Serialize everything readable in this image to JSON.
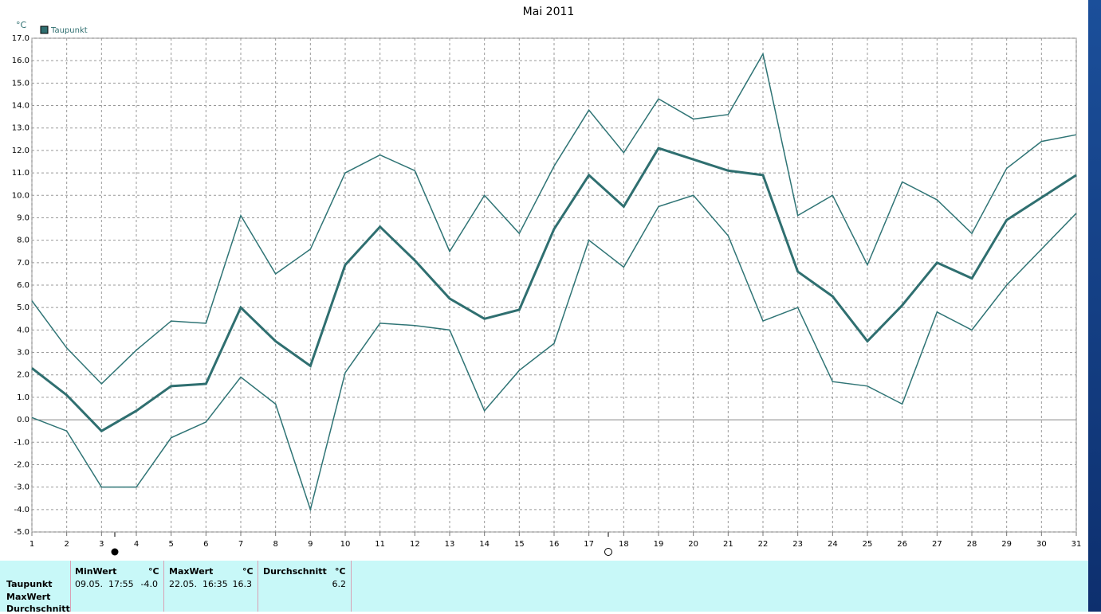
{
  "chart_data": {
    "type": "line",
    "title": "Mai 2011",
    "y_label": "°C",
    "x": [
      1,
      2,
      3,
      4,
      5,
      6,
      7,
      8,
      9,
      10,
      11,
      12,
      13,
      14,
      15,
      16,
      17,
      18,
      19,
      20,
      21,
      22,
      23,
      24,
      25,
      26,
      27,
      28,
      29,
      30,
      31
    ],
    "series": [
      {
        "name": "Taupunkt",
        "color": "#2f6f70",
        "values": [
          2.3,
          1.1,
          -0.5,
          0.4,
          1.5,
          1.6,
          5.0,
          3.5,
          2.4,
          6.9,
          8.6,
          7.1,
          5.4,
          4.5,
          4.9,
          8.5,
          10.9,
          9.5,
          12.1,
          11.6,
          11.1,
          10.9,
          6.6,
          5.5,
          3.5,
          5.1,
          7.0,
          6.3,
          8.9,
          9.9,
          10.9
        ]
      },
      {
        "color": "#2f7475",
        "values": [
          5.3,
          3.2,
          1.6,
          3.1,
          4.4,
          4.3,
          9.1,
          6.5,
          7.6,
          11.0,
          11.8,
          11.1,
          7.5,
          10.0,
          8.3,
          11.3,
          13.8,
          11.9,
          14.3,
          13.4,
          13.6,
          16.3,
          9.1,
          10.0,
          6.9,
          10.6,
          9.8,
          8.3,
          11.2,
          12.4,
          12.7
        ]
      },
      {
        "color": "#2f7475",
        "values": [
          0.1,
          -0.5,
          -3.0,
          -3.0,
          -0.8,
          -0.1,
          1.9,
          0.7,
          -4.0,
          2.1,
          4.3,
          4.2,
          4.0,
          0.4,
          2.2,
          3.4,
          8.0,
          6.8,
          9.5,
          10.0,
          8.2,
          4.4,
          5.0,
          1.7,
          1.5,
          0.7,
          4.8,
          4.0,
          6.0,
          7.6,
          9.2
        ]
      }
    ],
    "xlim": [
      1,
      31
    ],
    "xticks": [
      1,
      2,
      3,
      4,
      5,
      6,
      7,
      8,
      9,
      10,
      11,
      12,
      13,
      14,
      15,
      16,
      17,
      18,
      19,
      20,
      21,
      22,
      23,
      24,
      25,
      26,
      27,
      28,
      29,
      30,
      31
    ],
    "ylim": [
      -5,
      17
    ],
    "yticks": [
      {
        "value": -5,
        "label": "-5.0"
      },
      {
        "value": -4,
        "label": "-4.0"
      },
      {
        "value": -3,
        "label": "-3.0"
      },
      {
        "value": -2,
        "label": "-2.0"
      },
      {
        "value": -1,
        "label": "-1.0"
      },
      {
        "value": 0,
        "label": "0.0"
      },
      {
        "value": 1,
        "label": "1.0"
      },
      {
        "value": 2,
        "label": "2.0"
      },
      {
        "value": 3,
        "label": "3.0"
      },
      {
        "value": 4,
        "label": "4.0"
      },
      {
        "value": 5,
        "label": "5.0"
      },
      {
        "value": 6,
        "label": "6.0"
      },
      {
        "value": 7,
        "label": "7.0"
      },
      {
        "value": 8,
        "label": "8.0"
      },
      {
        "value": 9,
        "label": "9.0"
      },
      {
        "value": 10,
        "label": "10.0"
      },
      {
        "value": 11,
        "label": "11.0"
      },
      {
        "value": 12,
        "label": "12.0"
      },
      {
        "value": 13,
        "label": "13.0"
      },
      {
        "value": 14,
        "label": "14.0"
      },
      {
        "value": 15,
        "label": "15.0"
      },
      {
        "value": 16,
        "label": "16.0"
      },
      {
        "value": 17,
        "label": "17.0"
      }
    ],
    "grid": true
  },
  "table": {
    "row_labels": [
      "Taupunkt",
      "MaxWert",
      "Durchschnitt"
    ],
    "columns": [
      {
        "header": "MinWert",
        "unit": "°C",
        "time": "09.05.  17:55",
        "value": "-4.0"
      },
      {
        "header": "MaxWert",
        "unit": "°C",
        "time": "22.05.  16:35",
        "value": "16.3"
      },
      {
        "header": "Durchschnitt",
        "unit": "°C",
        "value": "6.2"
      }
    ]
  }
}
